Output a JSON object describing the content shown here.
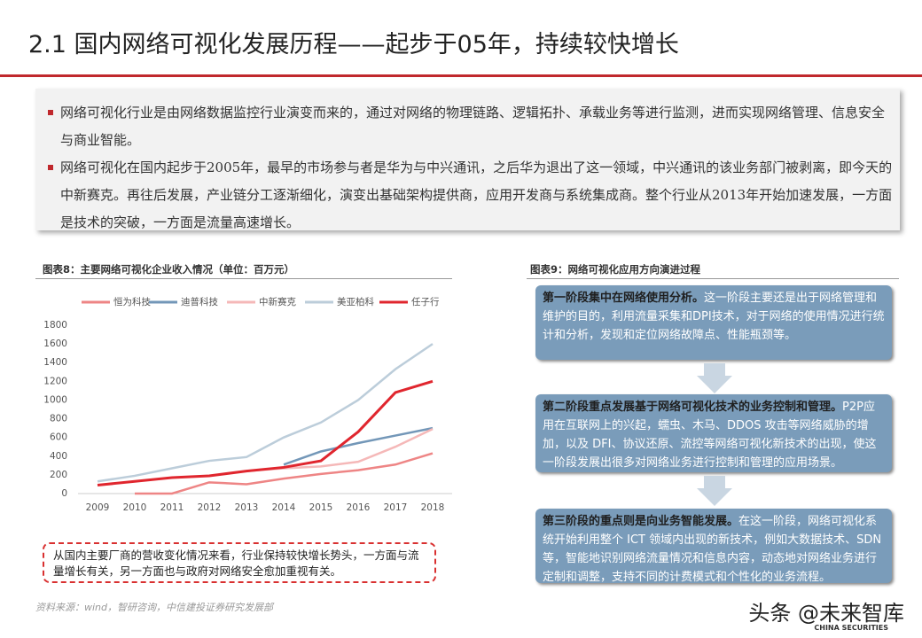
{
  "header": {
    "title": "2.1 国内网络可视化发展历程——起步于05年，持续较快增长"
  },
  "bullets": [
    "网络可视化行业是由网络数据监控行业演变而来的，通过对网络的物理链路、逻辑拓扑、承载业务等进行监测，进而实现网络管理、信息安全与商业智能。",
    "网络可视化在国内起步于2005年，最早的市场参与者是华为与中兴通讯，之后华为退出了这一领域，中兴通讯的该业务部门被剥离，即今天的中新赛克。再往后发展，产业链分工逐渐细化，演变出基础架构提供商，应用开发商与系统集成商。整个行业从2013年开始加速发展，一方面是技术的突破，一方面是流量高速增长。"
  ],
  "chart_data": {
    "type": "line",
    "title": "图表8：主要网络可视化企业收入情况（单位：百万元）",
    "categories": [
      "2009",
      "2010",
      "2011",
      "2012",
      "2013",
      "2014",
      "2015",
      "2016",
      "2017",
      "2018"
    ],
    "series": [
      {
        "name": "恒为科技",
        "color": "#ee8585",
        "values": [
          null,
          0,
          0,
          120,
          100,
          160,
          210,
          250,
          310,
          430
        ]
      },
      {
        "name": "迪普科技",
        "color": "#7397b8",
        "values": [
          null,
          null,
          null,
          null,
          null,
          310,
          450,
          540,
          620,
          700
        ]
      },
      {
        "name": "中新赛克",
        "color": "#f5b8b8",
        "values": [
          null,
          null,
          null,
          null,
          240,
          270,
          290,
          340,
          500,
          690
        ]
      },
      {
        "name": "美亚柏科",
        "color": "#bccdda",
        "values": [
          130,
          190,
          270,
          350,
          390,
          600,
          760,
          1000,
          1330,
          1600
        ]
      },
      {
        "name": "任子行",
        "color": "#e0262e",
        "values": [
          90,
          130,
          170,
          190,
          240,
          280,
          350,
          660,
          1080,
          1200
        ]
      }
    ],
    "ylim": [
      0,
      1800
    ],
    "yticks": [
      0,
      200,
      400,
      600,
      800,
      1000,
      1200,
      1400,
      1600,
      1800
    ],
    "grid": false
  },
  "note": "从国内主要厂商的营收变化情况来看，行业保持较快增长势头，一方面与流量增长有关，另一方面也与政府对网络安全愈加重视有关。",
  "source": "资料来源：wind，智研咨询，中信建投证券研究发展部",
  "diagram": {
    "title": "图表9：网络可视化应用方向演进过程",
    "stages": [
      {
        "lead": "第一阶段集中在网络使用分析。",
        "text": "这一阶段主要还是出于网络管理和维护的目的，利用流量采集和DPI技术，对于网络的使用情况进行统计和分析，发现和定位网络故障点、性能瓶颈等。"
      },
      {
        "lead": "第二阶段重点发展基于网络可视化技术的业务控制和管理。",
        "text": "P2P应用在互联网上的兴起，蠕虫、木马、DDOS 攻击等网络威胁的增加，以及 DFI、协议还原、流控等网络可视化新技术的出现，使这一阶段发展出很多对网络业务进行控制和管理的应用场景。"
      },
      {
        "lead": "第三阶段的重点则是向业务智能发展。",
        "text": "在这一阶段，网络可视化系统开始利用整个 ICT 领域内出现的新技术，例如大数据技术、SDN 等，智能地识别网络流量情况和信息内容，动态地对网络业务进行定制和调整，支持不同的计费模式和个性化的业务流程。"
      }
    ]
  },
  "watermark": "头条 @未来智库",
  "logo": "CHINA SECURITIES"
}
